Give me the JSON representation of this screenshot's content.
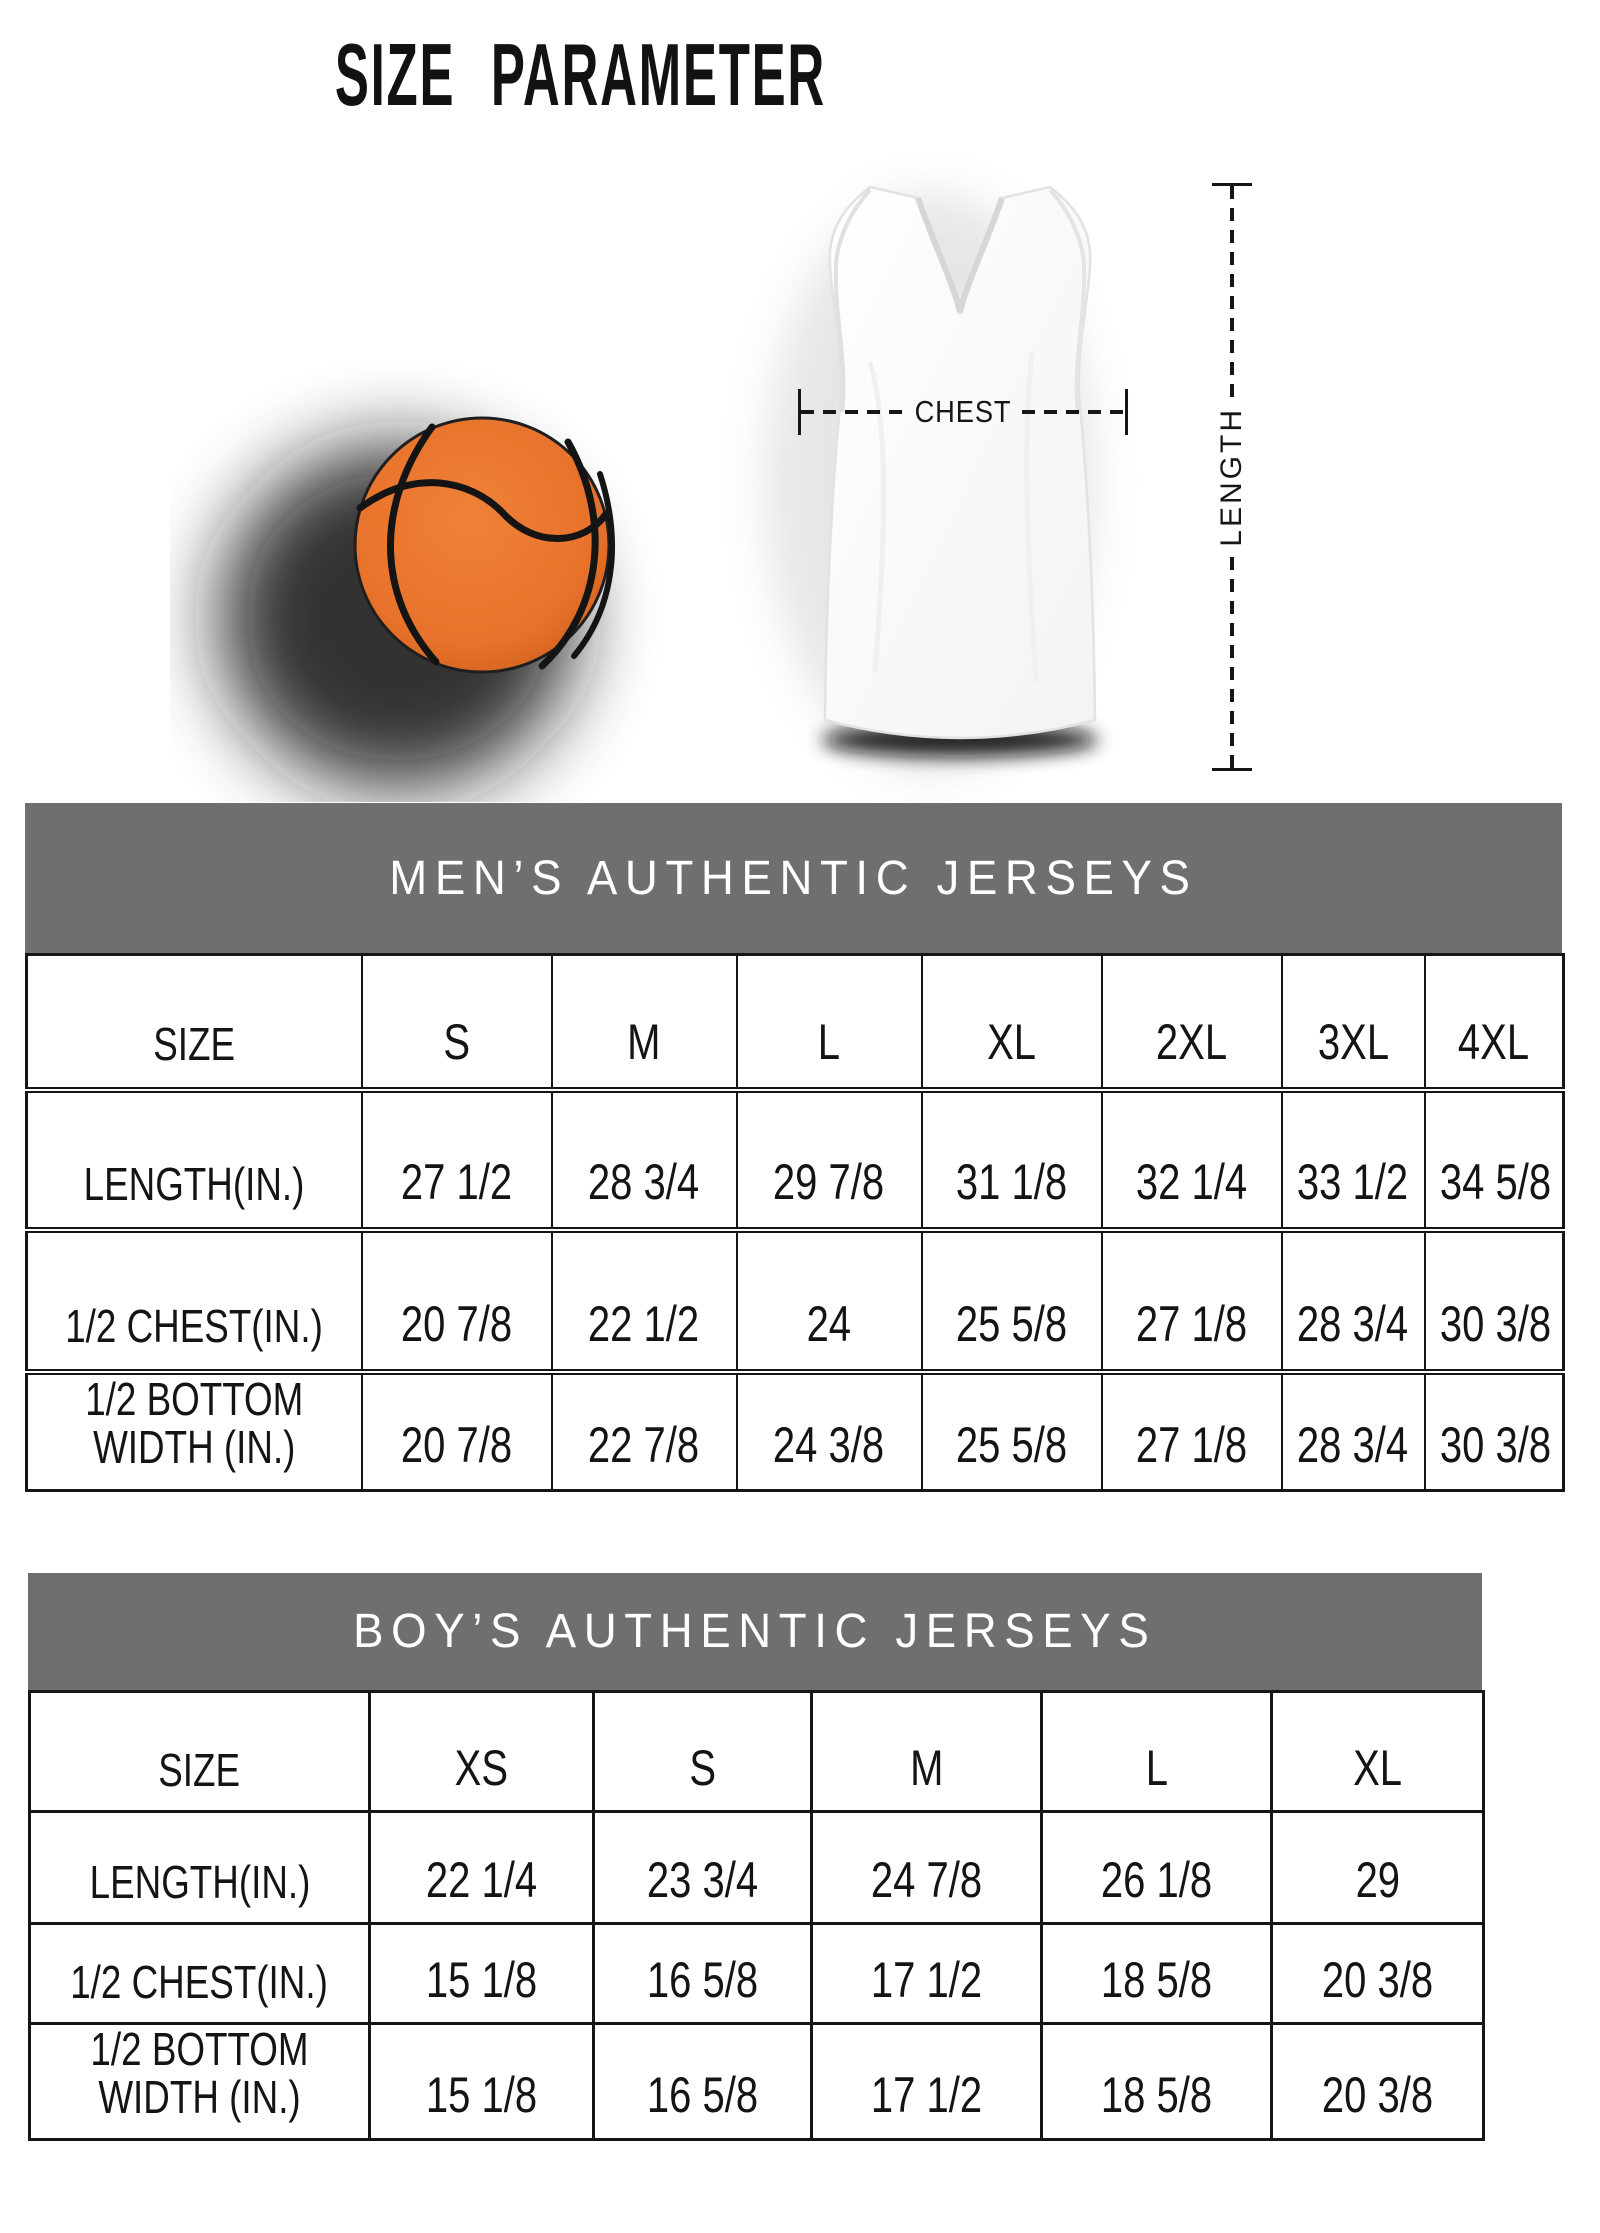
{
  "title": "SIZE PARAMETER",
  "diagram": {
    "chest_label": "CHEST",
    "length_label": "LENGTH",
    "ball_color": "#e8722b",
    "banner_color": "#6f6f6f"
  },
  "tables": [
    {
      "id": "mens",
      "banner": "MEN’S AUTHENTIC JERSEYS",
      "size_label": "SIZE",
      "sizes": [
        "S",
        "M",
        "L",
        "XL",
        "2XL",
        "3XL",
        "4XL"
      ],
      "rows": [
        {
          "label": "LENGTH(IN.)",
          "values": [
            "27 1/2",
            "28 3/4",
            "29 7/8",
            "31 1/8",
            "32 1/4",
            "33 1/2",
            "34 5/8"
          ]
        },
        {
          "label": "1/2 CHEST(IN.)",
          "values": [
            "20 7/8",
            "22 1/2",
            "24",
            "25 5/8",
            "27 1/8",
            "28 3/4",
            "30 3/8"
          ]
        },
        {
          "label": "1/2 BOTTOM WIDTH (IN.)",
          "values": [
            "20 7/8",
            "22 7/8",
            "24 3/8",
            "25 5/8",
            "27 1/8",
            "28 3/4",
            "30 3/8"
          ]
        }
      ]
    },
    {
      "id": "boys",
      "banner": "BOY’S AUTHENTIC JERSEYS",
      "size_label": "SIZE",
      "sizes": [
        "XS",
        "S",
        "M",
        "L",
        "XL"
      ],
      "rows": [
        {
          "label": "LENGTH(IN.)",
          "values": [
            "22 1/4",
            "23 3/4",
            "24 7/8",
            "26 1/8",
            "29"
          ]
        },
        {
          "label": "1/2 CHEST(IN.)",
          "values": [
            "15 1/8",
            "16 5/8",
            "17 1/2",
            "18 5/8",
            "20 3/8"
          ]
        },
        {
          "label": "1/2 BOTTOM WIDTH (IN.)",
          "values": [
            "15 1/8",
            "16 5/8",
            "17 1/2",
            "18 5/8",
            "20 3/8"
          ]
        }
      ]
    }
  ]
}
